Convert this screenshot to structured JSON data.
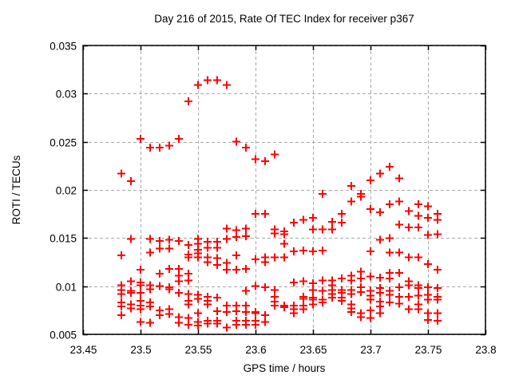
{
  "chart_data": {
    "type": "scatter",
    "title": "Day 216 of 2015, Rate Of TEC Index for receiver p367",
    "xlabel": "GPS time / hours",
    "ylabel": "ROTI / TECUs",
    "xlim": [
      23.45,
      23.8
    ],
    "ylim": [
      0.005,
      0.035
    ],
    "xticks": [
      "23.45",
      "23.5",
      "23.55",
      "23.6",
      "23.65",
      "23.7",
      "23.75",
      "23.8"
    ],
    "yticks": [
      "0.005",
      "0.01",
      "0.015",
      "0.02",
      "0.025",
      "0.03",
      "0.035"
    ],
    "grid": true,
    "legend_position": "none",
    "marker": "plus",
    "marker_color": "#ff0000",
    "grid_color": "#a8a8a8",
    "axis_color": "#000000",
    "series": [
      {
        "name": "ROTI",
        "points": [
          [
            23.4833,
            0.0217
          ],
          [
            23.4833,
            0.0132
          ],
          [
            23.4833,
            0.0101
          ],
          [
            23.4833,
            0.0096
          ],
          [
            23.4833,
            0.0092
          ],
          [
            23.4833,
            0.0083
          ],
          [
            23.4833,
            0.0079
          ],
          [
            23.4833,
            0.007
          ],
          [
            23.4917,
            0.0209
          ],
          [
            23.4917,
            0.0149
          ],
          [
            23.4917,
            0.0105
          ],
          [
            23.4917,
            0.0095
          ],
          [
            23.4917,
            0.0093
          ],
          [
            23.4917,
            0.0081
          ],
          [
            23.4917,
            0.0077
          ],
          [
            23.5,
            0.0253
          ],
          [
            23.5,
            0.0117
          ],
          [
            23.5,
            0.0104
          ],
          [
            23.5,
            0.0101
          ],
          [
            23.5,
            0.0093
          ],
          [
            23.5,
            0.0085
          ],
          [
            23.5,
            0.008
          ],
          [
            23.5,
            0.0076
          ],
          [
            23.5,
            0.0063
          ],
          [
            23.5083,
            0.0244
          ],
          [
            23.5083,
            0.0149
          ],
          [
            23.5083,
            0.0135
          ],
          [
            23.5083,
            0.0101
          ],
          [
            23.5083,
            0.0097
          ],
          [
            23.5083,
            0.0083
          ],
          [
            23.5083,
            0.0079
          ],
          [
            23.5083,
            0.0062
          ],
          [
            23.5167,
            0.0244
          ],
          [
            23.5167,
            0.0147
          ],
          [
            23.5167,
            0.0139
          ],
          [
            23.5167,
            0.0113
          ],
          [
            23.5167,
            0.01
          ],
          [
            23.5167,
            0.0075
          ],
          [
            23.5167,
            0.007
          ],
          [
            23.525,
            0.0246
          ],
          [
            23.525,
            0.0148
          ],
          [
            23.525,
            0.0139
          ],
          [
            23.525,
            0.0118
          ],
          [
            23.525,
            0.0099
          ],
          [
            23.525,
            0.0097
          ],
          [
            23.525,
            0.0076
          ],
          [
            23.525,
            0.0071
          ],
          [
            23.5333,
            0.0253
          ],
          [
            23.5333,
            0.0147
          ],
          [
            23.5333,
            0.0118
          ],
          [
            23.5333,
            0.0111
          ],
          [
            23.5333,
            0.0105
          ],
          [
            23.5333,
            0.0093
          ],
          [
            23.5333,
            0.0068
          ],
          [
            23.5333,
            0.0062
          ],
          [
            23.5417,
            0.0292
          ],
          [
            23.5417,
            0.0143
          ],
          [
            23.5417,
            0.0133
          ],
          [
            23.5417,
            0.013
          ],
          [
            23.5417,
            0.0113
          ],
          [
            23.5417,
            0.0106
          ],
          [
            23.5417,
            0.0092
          ],
          [
            23.5417,
            0.0085
          ],
          [
            23.5417,
            0.0081
          ],
          [
            23.5417,
            0.0067
          ],
          [
            23.5417,
            0.006
          ],
          [
            23.55,
            0.0309
          ],
          [
            23.55,
            0.0149
          ],
          [
            23.55,
            0.0144
          ],
          [
            23.55,
            0.0138
          ],
          [
            23.55,
            0.0134
          ],
          [
            23.55,
            0.013
          ],
          [
            23.55,
            0.0091
          ],
          [
            23.55,
            0.0087
          ],
          [
            23.55,
            0.0072
          ],
          [
            23.55,
            0.0063
          ],
          [
            23.55,
            0.0059
          ],
          [
            23.5583,
            0.0314
          ],
          [
            23.5583,
            0.0146
          ],
          [
            23.5583,
            0.014
          ],
          [
            23.5583,
            0.013
          ],
          [
            23.5583,
            0.0125
          ],
          [
            23.5583,
            0.0089
          ],
          [
            23.5583,
            0.0085
          ],
          [
            23.5583,
            0.0081
          ],
          [
            23.5583,
            0.0064
          ],
          [
            23.5583,
            0.0061
          ],
          [
            23.5667,
            0.0314
          ],
          [
            23.5667,
            0.0146
          ],
          [
            23.5667,
            0.014
          ],
          [
            23.5667,
            0.0129
          ],
          [
            23.5667,
            0.0122
          ],
          [
            23.5667,
            0.0088
          ],
          [
            23.5667,
            0.0074
          ],
          [
            23.5667,
            0.0064
          ],
          [
            23.5667,
            0.0061
          ],
          [
            23.575,
            0.0309
          ],
          [
            23.575,
            0.016
          ],
          [
            23.575,
            0.0149
          ],
          [
            23.575,
            0.0124
          ],
          [
            23.575,
            0.0117
          ],
          [
            23.575,
            0.008
          ],
          [
            23.575,
            0.0073
          ],
          [
            23.575,
            0.0057
          ],
          [
            23.5833,
            0.025
          ],
          [
            23.5833,
            0.0158
          ],
          [
            23.5833,
            0.0151
          ],
          [
            23.5833,
            0.0132
          ],
          [
            23.5833,
            0.0117
          ],
          [
            23.5833,
            0.008
          ],
          [
            23.5833,
            0.0074
          ],
          [
            23.5833,
            0.0064
          ],
          [
            23.5833,
            0.006
          ],
          [
            23.5917,
            0.0244
          ],
          [
            23.5917,
            0.016
          ],
          [
            23.5917,
            0.0152
          ],
          [
            23.5917,
            0.0118
          ],
          [
            23.5917,
            0.0095
          ],
          [
            23.5917,
            0.008
          ],
          [
            23.5917,
            0.0073
          ],
          [
            23.5917,
            0.0064
          ],
          [
            23.5917,
            0.006
          ],
          [
            23.6,
            0.0232
          ],
          [
            23.6,
            0.0175
          ],
          [
            23.6,
            0.0128
          ],
          [
            23.6,
            0.01
          ],
          [
            23.6,
            0.0073
          ],
          [
            23.6,
            0.0072
          ],
          [
            23.6,
            0.0064
          ],
          [
            23.6,
            0.006
          ],
          [
            23.6083,
            0.023
          ],
          [
            23.6083,
            0.0175
          ],
          [
            23.6083,
            0.013
          ],
          [
            23.6083,
            0.0125
          ],
          [
            23.6083,
            0.0099
          ],
          [
            23.6083,
            0.007
          ],
          [
            23.6083,
            0.0063
          ],
          [
            23.6167,
            0.0237
          ],
          [
            23.6167,
            0.0159
          ],
          [
            23.6167,
            0.0155
          ],
          [
            23.6167,
            0.013
          ],
          [
            23.6167,
            0.0096
          ],
          [
            23.6167,
            0.0089
          ],
          [
            23.6167,
            0.0084
          ],
          [
            23.6167,
            0.008
          ],
          [
            23.625,
            0.0157
          ],
          [
            23.625,
            0.0154
          ],
          [
            23.625,
            0.0144
          ],
          [
            23.625,
            0.013
          ],
          [
            23.625,
            0.008
          ],
          [
            23.625,
            0.0078
          ],
          [
            23.6333,
            0.0166
          ],
          [
            23.6333,
            0.0136
          ],
          [
            23.6333,
            0.0104
          ],
          [
            23.6333,
            0.008
          ],
          [
            23.6333,
            0.0076
          ],
          [
            23.6333,
            0.0072
          ],
          [
            23.6417,
            0.0169
          ],
          [
            23.6417,
            0.0137
          ],
          [
            23.6417,
            0.0105
          ],
          [
            23.6417,
            0.0089
          ],
          [
            23.6417,
            0.0087
          ],
          [
            23.6417,
            0.008
          ],
          [
            23.6417,
            0.0076
          ],
          [
            23.65,
            0.0171
          ],
          [
            23.65,
            0.0159
          ],
          [
            23.65,
            0.0136
          ],
          [
            23.65,
            0.0103
          ],
          [
            23.65,
            0.0096
          ],
          [
            23.65,
            0.0088
          ],
          [
            23.65,
            0.0086
          ],
          [
            23.65,
            0.0081
          ],
          [
            23.6583,
            0.0196
          ],
          [
            23.6583,
            0.0159
          ],
          [
            23.6583,
            0.0137
          ],
          [
            23.6583,
            0.0106
          ],
          [
            23.6583,
            0.0095
          ],
          [
            23.6583,
            0.0086
          ],
          [
            23.6583,
            0.0083
          ],
          [
            23.6667,
            0.0167
          ],
          [
            23.6667,
            0.0159
          ],
          [
            23.6667,
            0.0106
          ],
          [
            23.6667,
            0.0101
          ],
          [
            23.6667,
            0.0096
          ],
          [
            23.6667,
            0.0092
          ],
          [
            23.6667,
            0.0088
          ],
          [
            23.675,
            0.0175
          ],
          [
            23.675,
            0.0166
          ],
          [
            23.675,
            0.0108
          ],
          [
            23.675,
            0.0096
          ],
          [
            23.675,
            0.0093
          ],
          [
            23.675,
            0.0088
          ],
          [
            23.675,
            0.0085
          ],
          [
            23.6833,
            0.0204
          ],
          [
            23.6833,
            0.0188
          ],
          [
            23.6833,
            0.0111
          ],
          [
            23.6833,
            0.0106
          ],
          [
            23.6833,
            0.0096
          ],
          [
            23.6833,
            0.0092
          ],
          [
            23.6833,
            0.0081
          ],
          [
            23.6833,
            0.0077
          ],
          [
            23.6833,
            0.0073
          ],
          [
            23.6917,
            0.0196
          ],
          [
            23.6917,
            0.0193
          ],
          [
            23.6917,
            0.0115
          ],
          [
            23.6917,
            0.0108
          ],
          [
            23.6917,
            0.0099
          ],
          [
            23.6917,
            0.0094
          ],
          [
            23.6917,
            0.0072
          ],
          [
            23.6917,
            0.0068
          ],
          [
            23.7,
            0.021
          ],
          [
            23.7,
            0.018
          ],
          [
            23.7,
            0.0136
          ],
          [
            23.7,
            0.011
          ],
          [
            23.7,
            0.0095
          ],
          [
            23.7,
            0.009
          ],
          [
            23.7,
            0.0086
          ],
          [
            23.7,
            0.0075
          ],
          [
            23.7,
            0.0067
          ],
          [
            23.7083,
            0.0217
          ],
          [
            23.7083,
            0.0177
          ],
          [
            23.7083,
            0.0148
          ],
          [
            23.7083,
            0.0109
          ],
          [
            23.7083,
            0.0098
          ],
          [
            23.7083,
            0.0093
          ],
          [
            23.7083,
            0.0084
          ],
          [
            23.7083,
            0.0079
          ],
          [
            23.7083,
            0.0072
          ],
          [
            23.7167,
            0.0224
          ],
          [
            23.7167,
            0.0185
          ],
          [
            23.7167,
            0.015
          ],
          [
            23.7167,
            0.0135
          ],
          [
            23.7167,
            0.0114
          ],
          [
            23.7167,
            0.0108
          ],
          [
            23.7167,
            0.0095
          ],
          [
            23.7167,
            0.0091
          ],
          [
            23.7167,
            0.0083
          ],
          [
            23.725,
            0.0212
          ],
          [
            23.725,
            0.0188
          ],
          [
            23.725,
            0.0164
          ],
          [
            23.725,
            0.0135
          ],
          [
            23.725,
            0.0114
          ],
          [
            23.725,
            0.0099
          ],
          [
            23.725,
            0.0089
          ],
          [
            23.725,
            0.0082
          ],
          [
            23.7333,
            0.0178
          ],
          [
            23.7333,
            0.0161
          ],
          [
            23.7333,
            0.013
          ],
          [
            23.7333,
            0.0105
          ],
          [
            23.7333,
            0.0101
          ],
          [
            23.7333,
            0.0089
          ],
          [
            23.7333,
            0.0076
          ],
          [
            23.7417,
            0.0185
          ],
          [
            23.7417,
            0.0173
          ],
          [
            23.7417,
            0.0161
          ],
          [
            23.7417,
            0.013
          ],
          [
            23.7417,
            0.0101
          ],
          [
            23.7417,
            0.0098
          ],
          [
            23.7417,
            0.009
          ],
          [
            23.7417,
            0.0081
          ],
          [
            23.7417,
            0.0076
          ],
          [
            23.75,
            0.0183
          ],
          [
            23.75,
            0.0171
          ],
          [
            23.75,
            0.0153
          ],
          [
            23.75,
            0.0123
          ],
          [
            23.75,
            0.0099
          ],
          [
            23.75,
            0.0091
          ],
          [
            23.75,
            0.0086
          ],
          [
            23.75,
            0.0072
          ],
          [
            23.75,
            0.0065
          ],
          [
            23.7583,
            0.0175
          ],
          [
            23.7583,
            0.0169
          ],
          [
            23.7583,
            0.0154
          ],
          [
            23.7583,
            0.0117
          ],
          [
            23.7583,
            0.0098
          ],
          [
            23.7583,
            0.0089
          ],
          [
            23.7583,
            0.0086
          ],
          [
            23.7583,
            0.0072
          ],
          [
            23.7583,
            0.0064
          ]
        ]
      }
    ]
  }
}
